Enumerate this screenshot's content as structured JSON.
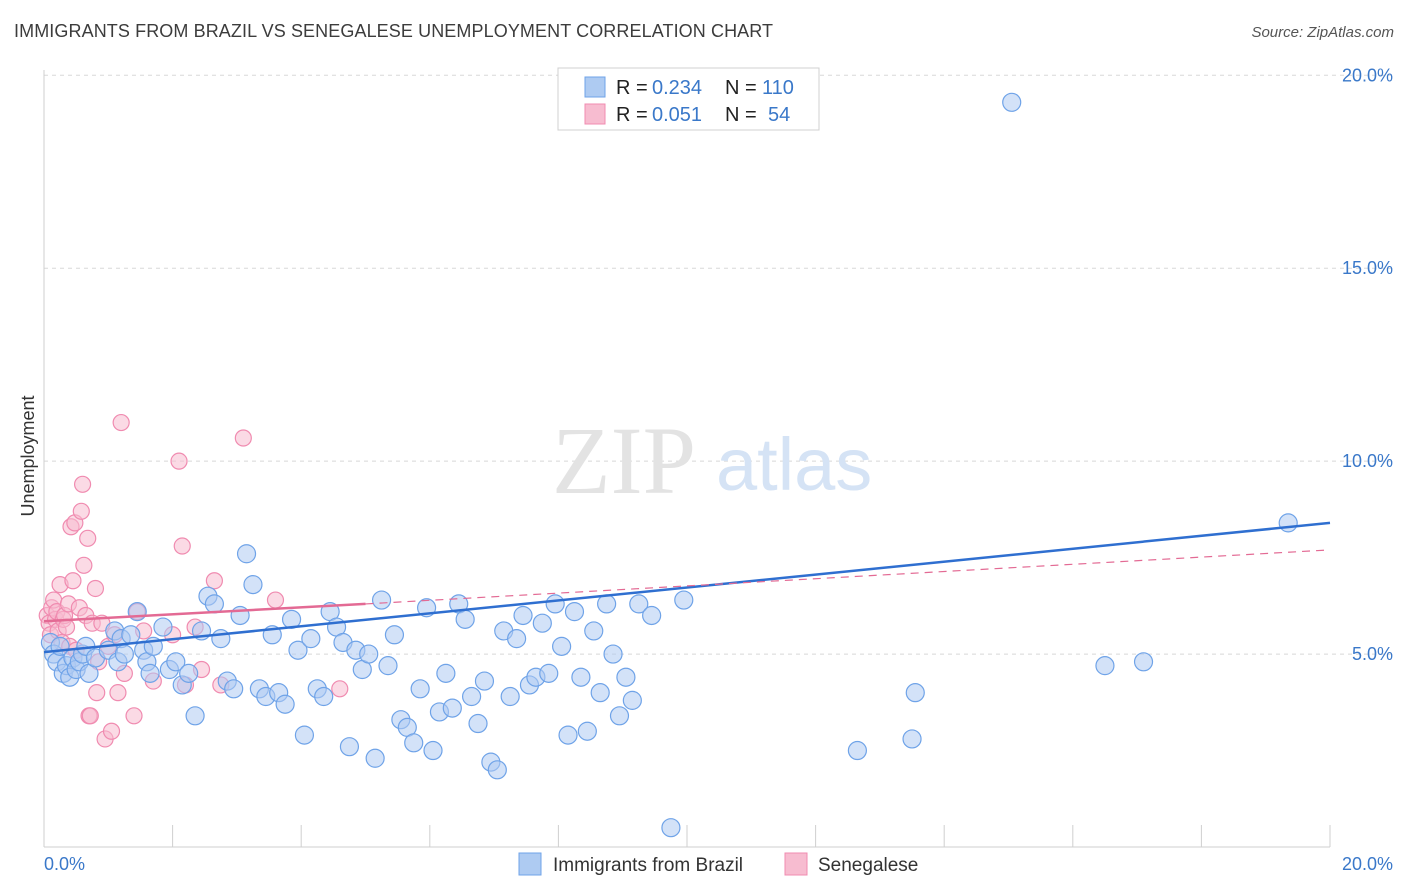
{
  "title": "IMMIGRANTS FROM BRAZIL VS SENEGALESE UNEMPLOYMENT CORRELATION CHART",
  "source": "Source: ZipAtlas.com",
  "watermark": {
    "zip": "ZIP",
    "atlas": "atlas"
  },
  "legend": {
    "rows": [
      {
        "r_label": "R =",
        "r_value": "0.234",
        "n_label": "N =",
        "n_value": "110",
        "color": "#6fa3e8"
      },
      {
        "r_label": "R =",
        "r_value": "0.051",
        "n_label": "N =",
        "n_value": "54",
        "color": "#f08bb0"
      }
    ]
  },
  "colors": {
    "brazil_fill": "#aecbf2",
    "brazil_stroke": "#6fa3e8",
    "brazil_line": "#2f6fd0",
    "senegal_fill": "#f7bcd0",
    "senegal_stroke": "#f08bb0",
    "senegal_line": "#e36a94",
    "grid": "#d8d8d8",
    "axis_text": "#3a78c9"
  },
  "chart_data": {
    "type": "scatter",
    "title": "IMMIGRANTS FROM BRAZIL VS SENEGALESE UNEMPLOYMENT CORRELATION CHART",
    "xlabel": "",
    "ylabel": "Unemployment",
    "xlim": [
      0,
      20
    ],
    "ylim": [
      0,
      20.5
    ],
    "x_tick_labels": [
      "0.0%",
      "20.0%"
    ],
    "y_ticks": [
      5,
      10,
      15,
      20
    ],
    "y_tick_labels": [
      "5.0%",
      "10.0%",
      "15.0%",
      "20.0%"
    ],
    "grid": true,
    "legend_position": "top-center",
    "series": [
      {
        "name": "Immigrants from Brazil",
        "color": "#6fa3e8",
        "trend": {
          "x": [
            0,
            20
          ],
          "y": [
            5.05,
            8.4
          ],
          "style": "solid"
        },
        "points": [
          [
            0.1,
            5.3
          ],
          [
            0.15,
            5.0
          ],
          [
            0.2,
            4.8
          ],
          [
            0.25,
            5.2
          ],
          [
            0.3,
            4.5
          ],
          [
            0.35,
            4.7
          ],
          [
            0.4,
            4.4
          ],
          [
            0.45,
            4.9
          ],
          [
            0.5,
            4.6
          ],
          [
            0.55,
            4.8
          ],
          [
            0.6,
            5.0
          ],
          [
            0.65,
            5.2
          ],
          [
            0.7,
            4.5
          ],
          [
            0.8,
            4.9
          ],
          [
            1.0,
            5.1
          ],
          [
            1.1,
            5.6
          ],
          [
            1.15,
            4.8
          ],
          [
            1.2,
            5.4
          ],
          [
            1.25,
            5.0
          ],
          [
            1.35,
            5.5
          ],
          [
            1.45,
            6.1
          ],
          [
            1.55,
            5.1
          ],
          [
            1.6,
            4.8
          ],
          [
            1.65,
            4.5
          ],
          [
            1.7,
            5.2
          ],
          [
            1.85,
            5.7
          ],
          [
            1.95,
            4.6
          ],
          [
            2.05,
            4.8
          ],
          [
            2.15,
            4.2
          ],
          [
            2.25,
            4.5
          ],
          [
            2.35,
            3.4
          ],
          [
            2.45,
            5.6
          ],
          [
            2.55,
            6.5
          ],
          [
            2.65,
            6.3
          ],
          [
            2.75,
            5.4
          ],
          [
            2.85,
            4.3
          ],
          [
            2.95,
            4.1
          ],
          [
            3.05,
            6.0
          ],
          [
            3.15,
            7.6
          ],
          [
            3.25,
            6.8
          ],
          [
            3.35,
            4.1
          ],
          [
            3.45,
            3.9
          ],
          [
            3.55,
            5.5
          ],
          [
            3.65,
            4.0
          ],
          [
            3.75,
            3.7
          ],
          [
            3.85,
            5.9
          ],
          [
            3.95,
            5.1
          ],
          [
            4.05,
            2.9
          ],
          [
            4.15,
            5.4
          ],
          [
            4.25,
            4.1
          ],
          [
            4.35,
            3.9
          ],
          [
            4.45,
            6.1
          ],
          [
            4.55,
            5.7
          ],
          [
            4.65,
            5.3
          ],
          [
            4.75,
            2.6
          ],
          [
            4.85,
            5.1
          ],
          [
            4.95,
            4.6
          ],
          [
            5.05,
            5.0
          ],
          [
            5.15,
            2.3
          ],
          [
            5.25,
            6.4
          ],
          [
            5.35,
            4.7
          ],
          [
            5.45,
            5.5
          ],
          [
            5.55,
            3.3
          ],
          [
            5.65,
            3.1
          ],
          [
            5.75,
            2.7
          ],
          [
            5.85,
            4.1
          ],
          [
            5.95,
            6.2
          ],
          [
            6.05,
            2.5
          ],
          [
            6.15,
            3.5
          ],
          [
            6.25,
            4.5
          ],
          [
            6.35,
            3.6
          ],
          [
            6.45,
            6.3
          ],
          [
            6.55,
            5.9
          ],
          [
            6.65,
            3.9
          ],
          [
            6.75,
            3.2
          ],
          [
            6.85,
            4.3
          ],
          [
            6.95,
            2.2
          ],
          [
            7.05,
            2.0
          ],
          [
            7.15,
            5.6
          ],
          [
            7.25,
            3.9
          ],
          [
            7.35,
            5.4
          ],
          [
            7.45,
            6.0
          ],
          [
            7.55,
            4.2
          ],
          [
            7.65,
            4.4
          ],
          [
            7.75,
            5.8
          ],
          [
            7.85,
            4.5
          ],
          [
            7.95,
            6.3
          ],
          [
            8.05,
            5.2
          ],
          [
            8.15,
            2.9
          ],
          [
            8.25,
            6.1
          ],
          [
            8.35,
            4.4
          ],
          [
            8.45,
            3.0
          ],
          [
            8.55,
            5.6
          ],
          [
            8.65,
            4.0
          ],
          [
            8.75,
            6.3
          ],
          [
            8.85,
            5.0
          ],
          [
            8.95,
            3.4
          ],
          [
            9.05,
            4.4
          ],
          [
            9.15,
            3.8
          ],
          [
            9.25,
            6.3
          ],
          [
            9.45,
            6.0
          ],
          [
            9.75,
            0.5
          ],
          [
            9.95,
            6.4
          ],
          [
            13.5,
            2.8
          ],
          [
            13.55,
            4.0
          ],
          [
            15.05,
            19.3
          ],
          [
            16.5,
            4.7
          ],
          [
            17.1,
            4.8
          ],
          [
            19.35,
            8.4
          ],
          [
            12.65,
            2.5
          ]
        ]
      },
      {
        "name": "Senegalese",
        "color": "#f08bb0",
        "trend": {
          "x": [
            0,
            5
          ],
          "y": [
            5.85,
            6.3
          ],
          "style": "solid"
        },
        "trend_extension": {
          "x": [
            5,
            20
          ],
          "y": [
            6.3,
            7.7
          ],
          "style": "dashed"
        },
        "points": [
          [
            0.05,
            6.0
          ],
          [
            0.08,
            5.8
          ],
          [
            0.1,
            5.5
          ],
          [
            0.12,
            6.2
          ],
          [
            0.15,
            6.4
          ],
          [
            0.18,
            5.9
          ],
          [
            0.2,
            6.1
          ],
          [
            0.22,
            5.6
          ],
          [
            0.25,
            6.8
          ],
          [
            0.28,
            5.3
          ],
          [
            0.3,
            5.9
          ],
          [
            0.32,
            6.0
          ],
          [
            0.35,
            5.7
          ],
          [
            0.38,
            6.3
          ],
          [
            0.4,
            5.2
          ],
          [
            0.42,
            8.3
          ],
          [
            0.45,
            6.9
          ],
          [
            0.48,
            8.4
          ],
          [
            0.5,
            5.1
          ],
          [
            0.55,
            6.2
          ],
          [
            0.58,
            8.7
          ],
          [
            0.6,
            9.4
          ],
          [
            0.62,
            7.3
          ],
          [
            0.65,
            6.0
          ],
          [
            0.68,
            8.0
          ],
          [
            0.7,
            3.4
          ],
          [
            0.72,
            3.4
          ],
          [
            0.75,
            5.8
          ],
          [
            0.8,
            6.7
          ],
          [
            0.82,
            4.0
          ],
          [
            0.85,
            4.8
          ],
          [
            0.9,
            5.8
          ],
          [
            0.95,
            2.8
          ],
          [
            1.0,
            5.2
          ],
          [
            1.05,
            3.0
          ],
          [
            1.1,
            5.5
          ],
          [
            1.15,
            4.0
          ],
          [
            1.2,
            11.0
          ],
          [
            1.25,
            4.5
          ],
          [
            1.4,
            3.4
          ],
          [
            1.45,
            6.1
          ],
          [
            1.55,
            5.6
          ],
          [
            1.7,
            4.3
          ],
          [
            2.1,
            10.0
          ],
          [
            2.15,
            7.8
          ],
          [
            2.2,
            4.2
          ],
          [
            2.35,
            5.7
          ],
          [
            2.45,
            4.6
          ],
          [
            2.65,
            6.9
          ],
          [
            2.75,
            4.2
          ],
          [
            3.1,
            10.6
          ],
          [
            3.6,
            6.4
          ],
          [
            4.6,
            4.1
          ],
          [
            2.0,
            5.5
          ]
        ]
      }
    ]
  }
}
